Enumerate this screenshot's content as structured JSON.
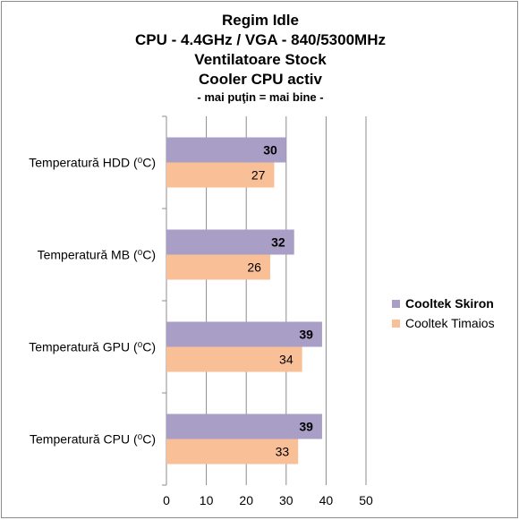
{
  "title": {
    "line1": "Regim Idle",
    "line2": "CPU - 4.4GHz / VGA - 840/5300MHz",
    "line3": "Ventilatoare Stock",
    "line4": "Cooler CPU activ",
    "subtitle": "- mai puţin = mai bine -"
  },
  "colors": {
    "series1": "#a99ec6",
    "series2": "#f9c097",
    "grid": "#8c8c8c",
    "axis": "#8c8c8c"
  },
  "chart_data": {
    "type": "bar",
    "orientation": "horizontal",
    "title": "Regim Idle",
    "categories": [
      "Temperatură  HDD (⁰C)",
      "Temperatură  MB (⁰C)",
      "Temperatură  GPU (⁰C)",
      "Temperatură  CPU (⁰C)"
    ],
    "series": [
      {
        "name": "Cooltek Skiron",
        "values": [
          30,
          32,
          39,
          39
        ],
        "bold_labels": true
      },
      {
        "name": "Cooltek Timaios",
        "values": [
          27,
          26,
          34,
          33
        ],
        "bold_labels": false
      }
    ],
    "xlim": [
      0,
      50
    ],
    "xticks": [
      "0",
      "10",
      "20",
      "30",
      "40",
      "50"
    ],
    "grid": true,
    "legend_position": "right"
  }
}
